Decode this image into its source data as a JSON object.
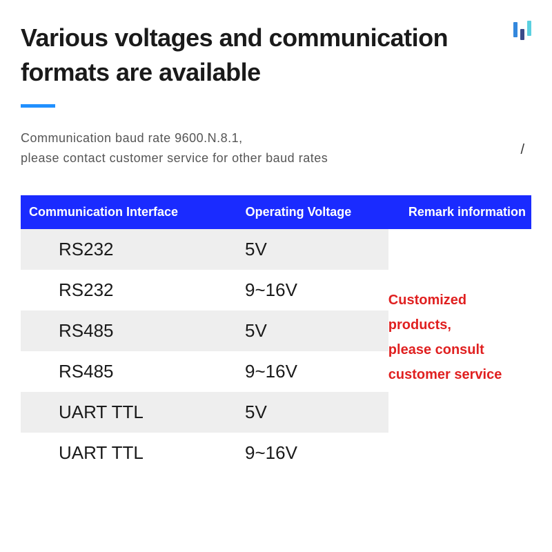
{
  "title": "Various voltages and communication formats are available",
  "subtitle_line1": "Communication baud rate 9600.N.8.1,",
  "subtitle_line2": "please contact customer service for other baud rates",
  "slash_decor": "/",
  "colors": {
    "header_bg": "#1a2bff",
    "accent_line": "#2090ff",
    "remark_text": "#e02020",
    "row_odd_bg": "#eeeeee",
    "row_even_bg": "#ffffff",
    "title_text": "#1a1a1a",
    "subtitle_text": "#555555",
    "corner_bar1": "#3388dd",
    "corner_bar2": "#3a4a8a",
    "corner_bar3": "#5bd0e0"
  },
  "table": {
    "type": "table",
    "columns": [
      "Communication Interface",
      "Operating Voltage",
      "Remark information"
    ],
    "rows": [
      {
        "interface": "RS232",
        "voltage": "5V"
      },
      {
        "interface": "RS232",
        "voltage": "9~16V"
      },
      {
        "interface": "RS485",
        "voltage": "5V"
      },
      {
        "interface": "RS485",
        "voltage": "9~16V"
      },
      {
        "interface": "UART TTL",
        "voltage": "5V"
      },
      {
        "interface": "UART TTL",
        "voltage": "9~16V"
      }
    ],
    "remark_line1": "Customized products,",
    "remark_line2": "please consult",
    "remark_line3": "customer service",
    "header_fontsize": 18,
    "cell_fontsize": 26,
    "remark_fontsize": 20
  }
}
